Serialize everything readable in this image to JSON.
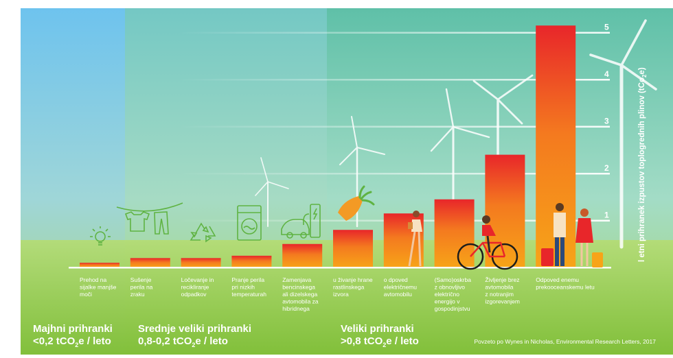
{
  "chart_data": {
    "type": "bar",
    "ylabel": "l etni prihranek izpustov toplogrednih plinov (tCo",
    "ylabel_sub": "2",
    "ylabel_end": "e)",
    "ylim": [
      0,
      5.3
    ],
    "ticks": [
      1,
      2,
      3,
      4,
      5
    ],
    "categories": [
      [
        "Prehod na",
        "sijalke manjše",
        "moči"
      ],
      [
        "Sušenje",
        "perila na",
        "zraku"
      ],
      [
        "Ločevanje in",
        "recikliranje",
        "odpadkov"
      ],
      [
        "Pranje perila",
        "pri nizkih",
        "temperaturah"
      ],
      [
        "Zamenjava",
        "bencinskega",
        "ali dizelskega",
        "avtomobila za",
        "hibridnega"
      ],
      [
        "u živanje hrane",
        "rastlinskega",
        "izvora"
      ],
      [
        "o dpoved",
        "električnemu",
        "avtomobilu"
      ],
      [
        "(Samo)oskrba",
        "z obnovljivo",
        "električno",
        "energijo v",
        "gospodinjstvu"
      ],
      [
        "Življenje brez",
        "avtomobila",
        "z notranjim",
        "izgorevanjem"
      ],
      [
        "Odpoved enemu",
        "prekooceanskemu letu"
      ]
    ],
    "values": [
      0.1,
      0.2,
      0.2,
      0.25,
      0.5,
      0.8,
      1.15,
      1.45,
      2.4,
      5.15
    ]
  },
  "groups": [
    {
      "title": "Majhni prihranki",
      "sub_prefix": "<0,2 tCO",
      "sub_suffix": "e / leto",
      "sub2": "2"
    },
    {
      "title": "Srednje veliki prihranki",
      "sub_prefix": "0,8-0,2 tCO",
      "sub_suffix": "e / leto",
      "sub2": "2"
    },
    {
      "title": "Veliki prihranki",
      "sub_prefix": ">0,8 tCO",
      "sub_suffix": "e / leto",
      "sub2": "2"
    }
  ],
  "source": "Povzeto po Wynes in Nicholas, Environmental Research Letters, 2017",
  "colors": {
    "bar_top": "#e8262a",
    "bar_bottom": "#f7a418",
    "zone_small": "#7cc6ea",
    "zone_medium": "#7fcfb5",
    "zone_large": "#67c4a3",
    "grass": "#8cc63f",
    "icon_green": "#5fb342"
  },
  "icons": [
    "bulb-icon",
    "clothesline-icon",
    "recycle-icon",
    "washing-machine-icon",
    "car-charger-icon",
    "carrot-icon",
    "walking-woman-icon",
    "cyclist-icon",
    "",
    "travelers-icon"
  ]
}
